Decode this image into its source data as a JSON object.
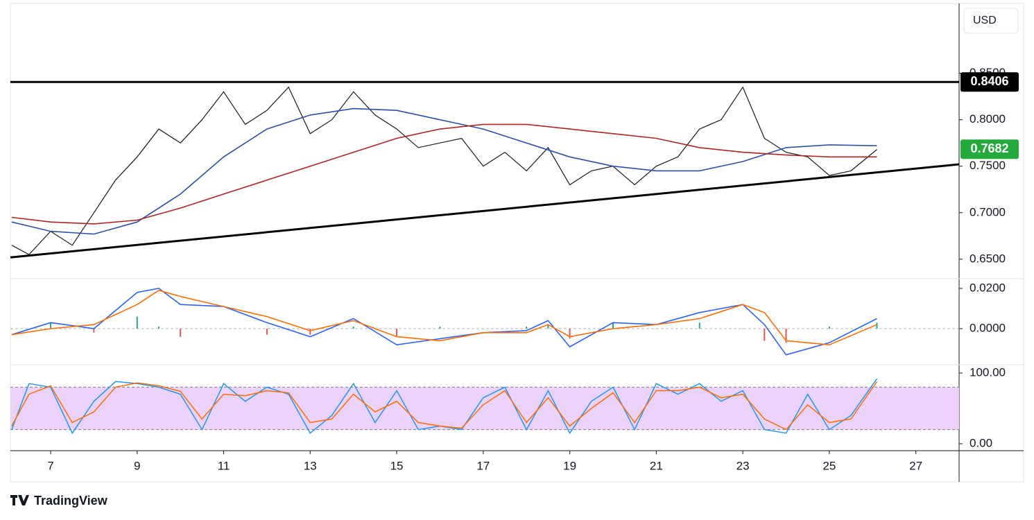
{
  "currency": "USD",
  "brand": "TradingView",
  "chart_data": [
    {
      "type": "line",
      "xlim": [
        6.07,
        28.0
      ],
      "ylim": [
        0.629,
        0.925
      ],
      "yticks": [
        {
          "value": 0.65,
          "label": "0.6500"
        },
        {
          "value": 0.7,
          "label": "0.7000"
        },
        {
          "value": 0.75,
          "label": "0.7500"
        },
        {
          "value": 0.8,
          "label": "0.8000"
        },
        {
          "value": 0.85,
          "label": "0.8500"
        }
      ],
      "series": [
        {
          "color": "#131722",
          "width": 1.2,
          "x": [
            6.1,
            6.5,
            7,
            7.5,
            8,
            8.5,
            9,
            9.5,
            10,
            10.5,
            11,
            11.5,
            12,
            12.5,
            13,
            13.5,
            14,
            14.5,
            15,
            15.5,
            16,
            16.5,
            17,
            17.5,
            18,
            18.5,
            19,
            19.5,
            20,
            20.5,
            21,
            21.5,
            22,
            22.5,
            23,
            23.5,
            24,
            24.5,
            25,
            25.5,
            26.1
          ],
          "values": [
            0.665,
            0.655,
            0.68,
            0.665,
            0.7,
            0.735,
            0.76,
            0.79,
            0.775,
            0.8,
            0.83,
            0.795,
            0.81,
            0.835,
            0.785,
            0.8,
            0.83,
            0.805,
            0.79,
            0.77,
            0.775,
            0.78,
            0.75,
            0.765,
            0.745,
            0.77,
            0.73,
            0.745,
            0.75,
            0.73,
            0.75,
            0.76,
            0.79,
            0.8,
            0.835,
            0.78,
            0.765,
            0.76,
            0.74,
            0.745,
            0.768
          ]
        },
        {
          "color": "#2a4fa8",
          "width": 1.6,
          "x": [
            6.1,
            7,
            8,
            9,
            10,
            11,
            12,
            13,
            14,
            15,
            16,
            17,
            18,
            19,
            20,
            21,
            22,
            23,
            24,
            25,
            26.1
          ],
          "values": [
            0.69,
            0.68,
            0.677,
            0.69,
            0.72,
            0.76,
            0.79,
            0.805,
            0.812,
            0.81,
            0.8,
            0.79,
            0.775,
            0.76,
            0.75,
            0.745,
            0.745,
            0.755,
            0.77,
            0.773,
            0.772
          ]
        },
        {
          "color": "#b22222",
          "width": 1.6,
          "x": [
            6.1,
            7,
            8,
            9,
            10,
            11,
            12,
            13,
            14,
            15,
            16,
            17,
            18,
            19,
            20,
            21,
            22,
            23,
            24,
            25,
            26.1
          ],
          "values": [
            0.695,
            0.69,
            0.688,
            0.692,
            0.705,
            0.72,
            0.735,
            0.75,
            0.765,
            0.78,
            0.79,
            0.795,
            0.795,
            0.79,
            0.785,
            0.78,
            0.77,
            0.765,
            0.762,
            0.76,
            0.76
          ]
        },
        {
          "color": "#000000",
          "width": 3,
          "x": [
            6.07,
            28.0
          ],
          "values": [
            0.8406,
            0.8406
          ]
        },
        {
          "color": "#000000",
          "width": 3,
          "x": [
            6.07,
            28.0
          ],
          "values": [
            0.652,
            0.752
          ]
        }
      ],
      "price_labels": [
        {
          "value": 0.8406,
          "label": "0.8406",
          "color": "#000000"
        },
        {
          "value": 0.7682,
          "label": "0.7682",
          "color": "#22ab3c"
        }
      ]
    },
    {
      "type": "line",
      "xlim": [
        6.07,
        28.0
      ],
      "ylim": [
        -0.0179,
        0.0248
      ],
      "yticks": [
        {
          "value": 0.0,
          "label": "0.0000"
        },
        {
          "value": 0.02,
          "label": "0.0200"
        }
      ],
      "baseline": 0,
      "series": [
        {
          "type": "bar",
          "up_color": "#26a69a",
          "down_color": "#ef5350",
          "x": [
            6.1,
            7,
            8,
            9,
            9.5,
            10,
            11,
            12,
            13,
            14,
            15,
            16,
            17,
            18,
            18.5,
            19,
            20,
            21,
            22,
            23,
            23.5,
            24,
            25,
            26.1
          ],
          "values": [
            0,
            0.003,
            -0.002,
            0.006,
            0.001,
            -0.004,
            0,
            -0.003,
            -0.003,
            0.001,
            -0.004,
            0.001,
            0,
            0.001,
            0.002,
            -0.005,
            0.003,
            0,
            0.003,
            0,
            -0.006,
            -0.007,
            0.001,
            0.003
          ]
        },
        {
          "color": "#2962ff",
          "width": 1.6,
          "x": [
            6.1,
            7,
            8,
            9,
            9.5,
            10,
            11,
            12,
            13,
            14,
            15,
            16,
            17,
            18,
            18.5,
            19,
            20,
            21,
            22,
            23,
            23.5,
            24,
            25,
            26.1
          ],
          "values": [
            -0.003,
            0.003,
            0.0,
            0.018,
            0.02,
            0.012,
            0.011,
            0.003,
            -0.004,
            0.005,
            -0.008,
            -0.005,
            -0.002,
            -0.001,
            0.004,
            -0.009,
            0.003,
            0.002,
            0.008,
            0.012,
            0.002,
            -0.013,
            -0.007,
            0.005
          ]
        },
        {
          "color": "#ff6d00",
          "width": 1.6,
          "x": [
            6.1,
            7,
            8,
            9,
            9.5,
            10,
            11,
            12,
            13,
            14,
            15,
            16,
            17,
            18,
            18.5,
            19,
            20,
            21,
            22,
            23,
            23.5,
            24,
            25,
            26.1
          ],
          "values": [
            -0.003,
            0.0,
            0.002,
            0.012,
            0.019,
            0.016,
            0.011,
            0.006,
            -0.001,
            0.004,
            -0.004,
            -0.006,
            -0.002,
            -0.002,
            0.002,
            -0.004,
            0.0,
            0.002,
            0.005,
            0.012,
            0.008,
            -0.006,
            -0.008,
            0.002
          ]
        }
      ]
    },
    {
      "type": "line",
      "xlim": [
        6.07,
        28.0
      ],
      "ylim": [
        -9.8,
        111.8
      ],
      "yticks": [
        {
          "value": 0,
          "label": "0.00"
        },
        {
          "value": 100,
          "label": "100.00"
        }
      ],
      "bands": [
        20,
        80
      ],
      "band_color": "#ebd2fb",
      "xticks": [
        7,
        9,
        11,
        13,
        15,
        17,
        19,
        21,
        23,
        25,
        27
      ],
      "series": [
        {
          "color": "#2196f3",
          "width": 1.5,
          "x": [
            6.1,
            6.5,
            7,
            7.5,
            8,
            8.5,
            9,
            9.5,
            10,
            10.5,
            11,
            11.5,
            12,
            12.5,
            13,
            13.5,
            14,
            14.5,
            15,
            15.5,
            16,
            16.5,
            17,
            17.5,
            18,
            18.5,
            19,
            19.5,
            20,
            20.5,
            21,
            21.5,
            22,
            22.5,
            23,
            23.5,
            24,
            24.5,
            25,
            25.5,
            26.1
          ],
          "values": [
            20,
            85,
            80,
            15,
            60,
            88,
            85,
            80,
            70,
            20,
            85,
            60,
            80,
            70,
            15,
            40,
            85,
            30,
            75,
            20,
            25,
            20,
            65,
            80,
            20,
            75,
            15,
            60,
            80,
            20,
            85,
            70,
            85,
            60,
            75,
            20,
            15,
            70,
            20,
            40,
            92
          ]
        },
        {
          "color": "#ff6d00",
          "width": 1.5,
          "x": [
            6.1,
            6.5,
            7,
            7.5,
            8,
            8.5,
            9,
            9.5,
            10,
            10.5,
            11,
            11.5,
            12,
            12.5,
            13,
            13.5,
            14,
            14.5,
            15,
            15.5,
            16,
            16.5,
            17,
            17.5,
            18,
            18.5,
            19,
            19.5,
            20,
            20.5,
            21,
            21.5,
            22,
            22.5,
            23,
            23.5,
            24,
            24.5,
            25,
            25.5,
            26.1
          ],
          "values": [
            25,
            70,
            82,
            30,
            45,
            80,
            86,
            82,
            74,
            35,
            70,
            68,
            75,
            72,
            30,
            35,
            70,
            45,
            60,
            30,
            25,
            22,
            55,
            75,
            30,
            65,
            25,
            50,
            72,
            30,
            75,
            75,
            80,
            65,
            70,
            35,
            20,
            55,
            30,
            35,
            88
          ]
        }
      ]
    }
  ]
}
